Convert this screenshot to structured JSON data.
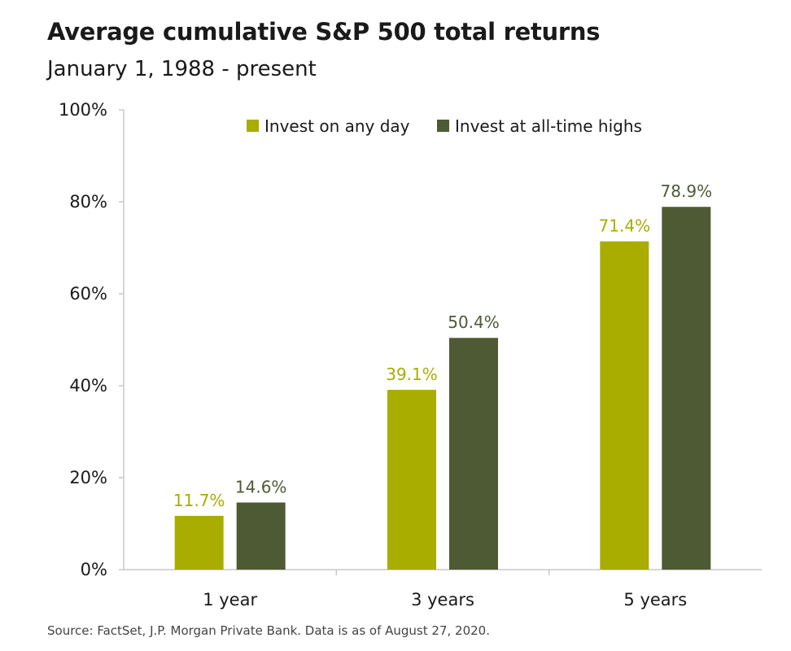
{
  "chart_data": {
    "type": "bar",
    "title": "Average cumulative S&P 500 total returns",
    "subtitle": "January 1, 1988 - present",
    "categories": [
      "1 year",
      "3 years",
      "5 years"
    ],
    "series": [
      {
        "name": "Invest on any day",
        "values": [
          11.7,
          39.1,
          71.4
        ],
        "labels": [
          "11.7%",
          "39.1%",
          "71.4%"
        ],
        "color": "#a8ad00"
      },
      {
        "name": "Invest at all-time highs",
        "values": [
          14.6,
          50.4,
          78.9
        ],
        "labels": [
          "14.6%",
          "50.4%",
          "78.9%"
        ],
        "color": "#4e5a34"
      }
    ],
    "ylim": [
      0,
      100
    ],
    "yticks": [
      0,
      20,
      40,
      60,
      80,
      100
    ],
    "ytick_labels": [
      "0%",
      "20%",
      "40%",
      "60%",
      "80%",
      "100%"
    ],
    "grid": false,
    "legend_position": "top-center",
    "source": "Source: FactSet, J.P. Morgan Private Bank. Data is as of August 27, 2020."
  }
}
